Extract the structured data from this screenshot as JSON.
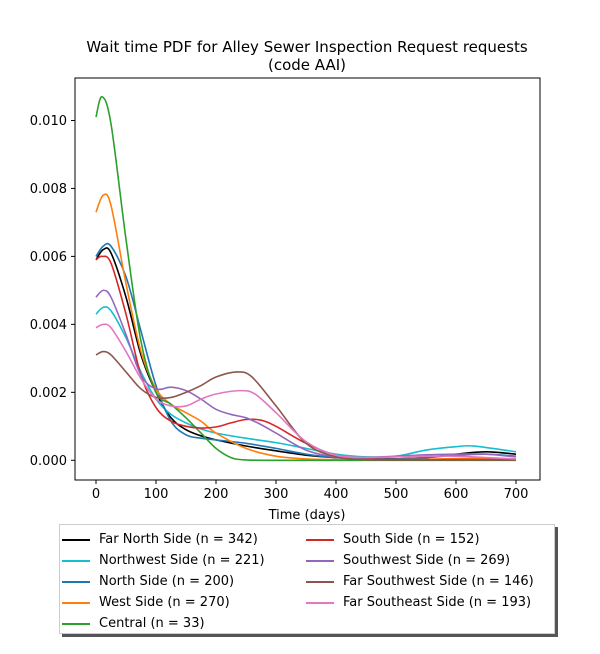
{
  "chart_data": {
    "type": "line",
    "title": "Wait time PDF for Alley Sewer Inspection Request  requests",
    "subtitle": "(code AAI)",
    "xlabel": "Time (days)",
    "ylabel": "",
    "xlim": [
      -35,
      740
    ],
    "ylim": [
      -0.00058,
      0.01125
    ],
    "xticks": [
      0,
      100,
      200,
      300,
      400,
      500,
      600,
      700
    ],
    "xtick_labels": [
      "0",
      "100",
      "200",
      "300",
      "400",
      "500",
      "600",
      "700"
    ],
    "yticks": [
      0.0,
      0.002,
      0.004,
      0.006,
      0.008,
      0.01
    ],
    "ytick_labels": [
      "0.000",
      "0.002",
      "0.004",
      "0.006",
      "0.008",
      "0.010"
    ],
    "grid": false,
    "legend_position": "below",
    "series": [
      {
        "name": "Far North Side (n = 342)",
        "color": "#000000",
        "x": [
          0,
          12,
          25,
          50,
          75,
          100,
          125,
          150,
          175,
          200,
          250,
          300,
          350,
          400,
          450,
          500,
          550,
          600,
          650,
          700
        ],
        "y": [
          0.0059,
          0.0062,
          0.0061,
          0.0048,
          0.0031,
          0.002,
          0.00125,
          0.0009,
          0.00072,
          0.0006,
          0.00042,
          0.00028,
          0.00015,
          8e-05,
          5e-05,
          4e-05,
          8e-05,
          0.00018,
          0.00025,
          0.00018
        ]
      },
      {
        "name": "Northwest Side (n = 221)",
        "color": "#17becf",
        "x": [
          0,
          12,
          25,
          50,
          75,
          100,
          125,
          150,
          175,
          200,
          250,
          300,
          350,
          400,
          450,
          500,
          550,
          600,
          630,
          700
        ],
        "y": [
          0.0043,
          0.0045,
          0.0044,
          0.0036,
          0.0026,
          0.0018,
          0.00135,
          0.0011,
          0.00092,
          0.0008,
          0.00065,
          0.00052,
          0.00035,
          0.00018,
          0.0001,
          0.00012,
          0.0003,
          0.0004,
          0.00042,
          0.00025
        ]
      },
      {
        "name": "North Side (n = 200)",
        "color": "#1f77b4",
        "x": [
          0,
          12,
          25,
          50,
          75,
          100,
          125,
          150,
          175,
          200,
          250,
          300,
          350,
          400,
          450,
          500,
          550,
          600,
          650,
          700
        ],
        "y": [
          0.006,
          0.0063,
          0.0063,
          0.0054,
          0.0038,
          0.0022,
          0.00115,
          0.00075,
          0.00065,
          0.0006,
          0.0005,
          0.00035,
          0.00018,
          8e-05,
          4e-05,
          4e-05,
          8e-05,
          0.00015,
          0.00018,
          0.00012
        ]
      },
      {
        "name": "West Side (n = 270)",
        "color": "#ff7f0e",
        "x": [
          0,
          12,
          25,
          50,
          75,
          100,
          125,
          150,
          175,
          200,
          250,
          300,
          350,
          400,
          450,
          500,
          550,
          600,
          650,
          700
        ],
        "y": [
          0.0073,
          0.0078,
          0.0075,
          0.0052,
          0.0032,
          0.0021,
          0.00165,
          0.0014,
          0.00115,
          0.0008,
          0.00035,
          0.00012,
          4e-05,
          2e-05,
          2e-05,
          2e-05,
          3e-05,
          5e-05,
          6e-05,
          4e-05
        ]
      },
      {
        "name": "Central (n = 33)",
        "color": "#2ca02c",
        "x": [
          0,
          10,
          25,
          50,
          75,
          100,
          125,
          150,
          175,
          200,
          225,
          250,
          300,
          350,
          400,
          500,
          600,
          700
        ],
        "y": [
          0.0101,
          0.0107,
          0.0099,
          0.0065,
          0.0035,
          0.002,
          0.00165,
          0.00125,
          0.0008,
          0.00035,
          8e-05,
          1e-05,
          0.0,
          0.0,
          0.0,
          0.0,
          0.0,
          0.0
        ]
      },
      {
        "name": "South Side (n = 152)",
        "color": "#d62728",
        "x": [
          0,
          10,
          25,
          50,
          75,
          100,
          125,
          150,
          175,
          200,
          225,
          250,
          275,
          300,
          350,
          400,
          450,
          500,
          600,
          700
        ],
        "y": [
          0.0059,
          0.006,
          0.0058,
          0.0043,
          0.0025,
          0.00155,
          0.00115,
          0.001,
          0.00095,
          0.00098,
          0.0011,
          0.0012,
          0.00118,
          0.001,
          0.0005,
          0.00015,
          4e-05,
          2e-05,
          2e-05,
          2e-05
        ]
      },
      {
        "name": "Southwest Side (n = 269)",
        "color": "#9467bd",
        "x": [
          0,
          12,
          25,
          50,
          75,
          100,
          125,
          150,
          175,
          200,
          225,
          250,
          275,
          300,
          350,
          400,
          450,
          500,
          550,
          600,
          650,
          700
        ],
        "y": [
          0.0048,
          0.005,
          0.0048,
          0.0037,
          0.0025,
          0.0021,
          0.00215,
          0.00205,
          0.0018,
          0.0015,
          0.00135,
          0.00125,
          0.00105,
          0.0008,
          0.0003,
          0.0001,
          8e-05,
          0.00012,
          0.00016,
          0.00018,
          0.00018,
          0.0001
        ]
      },
      {
        "name": "Far Southwest Side (n = 146)",
        "color": "#8c564b",
        "x": [
          0,
          12,
          25,
          50,
          75,
          100,
          125,
          150,
          175,
          200,
          235,
          260,
          300,
          350,
          400,
          450,
          500,
          550,
          600,
          700
        ],
        "y": [
          0.0031,
          0.0032,
          0.0031,
          0.0026,
          0.0021,
          0.00185,
          0.00185,
          0.002,
          0.0022,
          0.00245,
          0.0026,
          0.00245,
          0.0016,
          0.0005,
          0.0001,
          2e-05,
          1e-05,
          1e-05,
          1e-05,
          1e-05
        ]
      },
      {
        "name": "Far Southeast Side (n = 193)",
        "color": "#e377c2",
        "x": [
          0,
          12,
          25,
          50,
          75,
          100,
          125,
          150,
          175,
          200,
          240,
          265,
          300,
          350,
          400,
          450,
          500,
          550,
          600,
          650,
          700
        ],
        "y": [
          0.0039,
          0.004,
          0.0039,
          0.0032,
          0.0024,
          0.0018,
          0.0016,
          0.0016,
          0.0018,
          0.00195,
          0.00205,
          0.00195,
          0.0014,
          0.00055,
          0.00015,
          8e-05,
          0.0001,
          0.00012,
          0.00012,
          8e-05,
          4e-05
        ]
      }
    ]
  }
}
